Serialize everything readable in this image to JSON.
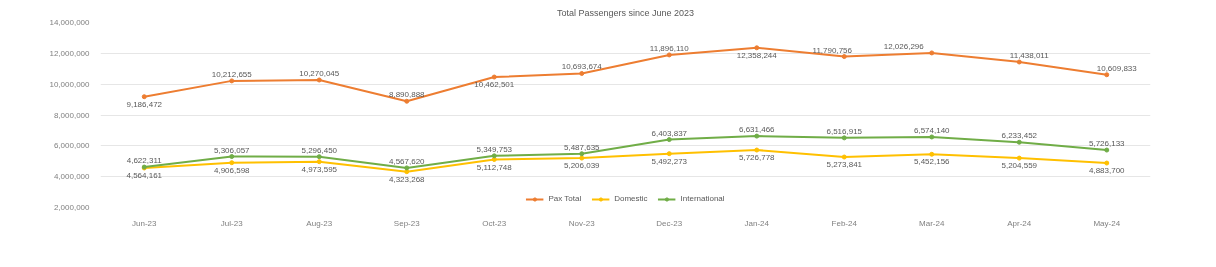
{
  "chart_data": {
    "type": "line",
    "title": "Total Passengers since June 2023",
    "categories": [
      "Jun-23",
      "Jul-23",
      "Aug-23",
      "Sep-23",
      "Oct-23",
      "Nov-23",
      "Dec-23",
      "Jan-24",
      "Feb-24",
      "Mar-24",
      "Apr-24",
      "May-24"
    ],
    "series": [
      {
        "name": "Pax Total",
        "color": "#ed7d31",
        "values": [
          9186472,
          10212655,
          10270045,
          8890888,
          10462501,
          10693674,
          11896110,
          12358244,
          11790756,
          12026296,
          11438011,
          10609833
        ],
        "value_labels": [
          "9,186,472",
          "10,212,655",
          "10,270,045",
          "8,890,888",
          "10,462,501",
          "10,693,674",
          "11,896,110",
          "12,358,244",
          "11,790,756",
          "12,026,296",
          "11,438,011",
          "10,609,833"
        ]
      },
      {
        "name": "Domestic",
        "color": "#ffc000",
        "values": [
          4564161,
          4906598,
          4973595,
          4323268,
          5112748,
          5206039,
          5492273,
          5726778,
          5273841,
          5452156,
          5204559,
          4883700
        ],
        "value_labels": [
          "4,564,161",
          "4,906,598",
          "4,973,595",
          "4,323,268",
          "5,112,748",
          "5,206,039",
          "5,492,273",
          "5,726,778",
          "5,273,841",
          "5,452,156",
          "5,204,559",
          "4,883,700"
        ]
      },
      {
        "name": "International",
        "color": "#70ad47",
        "values": [
          4622311,
          5306057,
          5296450,
          4567620,
          5349753,
          5487635,
          6403837,
          6631466,
          6516915,
          6574140,
          6233452,
          5726133
        ],
        "value_labels": [
          "4,622,311",
          "5,306,057",
          "5,296,450",
          "4,567,620",
          "5,349,753",
          "5,487,635",
          "6,403,837",
          "6,631,466",
          "6,516,915",
          "6,574,140",
          "6,233,452",
          "5,726,133"
        ]
      }
    ],
    "data_labels": true,
    "ylim": [
      2000000,
      14000000
    ],
    "yticks": [
      {
        "value": 2000000,
        "label": "2,000,000"
      },
      {
        "value": 4000000,
        "label": "4,000,000"
      },
      {
        "value": 6000000,
        "label": "6,000,000"
      },
      {
        "value": 8000000,
        "label": "8,000,000"
      },
      {
        "value": 10000000,
        "label": "10,000,000"
      },
      {
        "value": 12000000,
        "label": "12,000,000"
      },
      {
        "value": 14000000,
        "label": "14,000,000"
      }
    ],
    "grid": "y",
    "legend": "bottom",
    "marker": "circle",
    "line_style": "solid"
  }
}
